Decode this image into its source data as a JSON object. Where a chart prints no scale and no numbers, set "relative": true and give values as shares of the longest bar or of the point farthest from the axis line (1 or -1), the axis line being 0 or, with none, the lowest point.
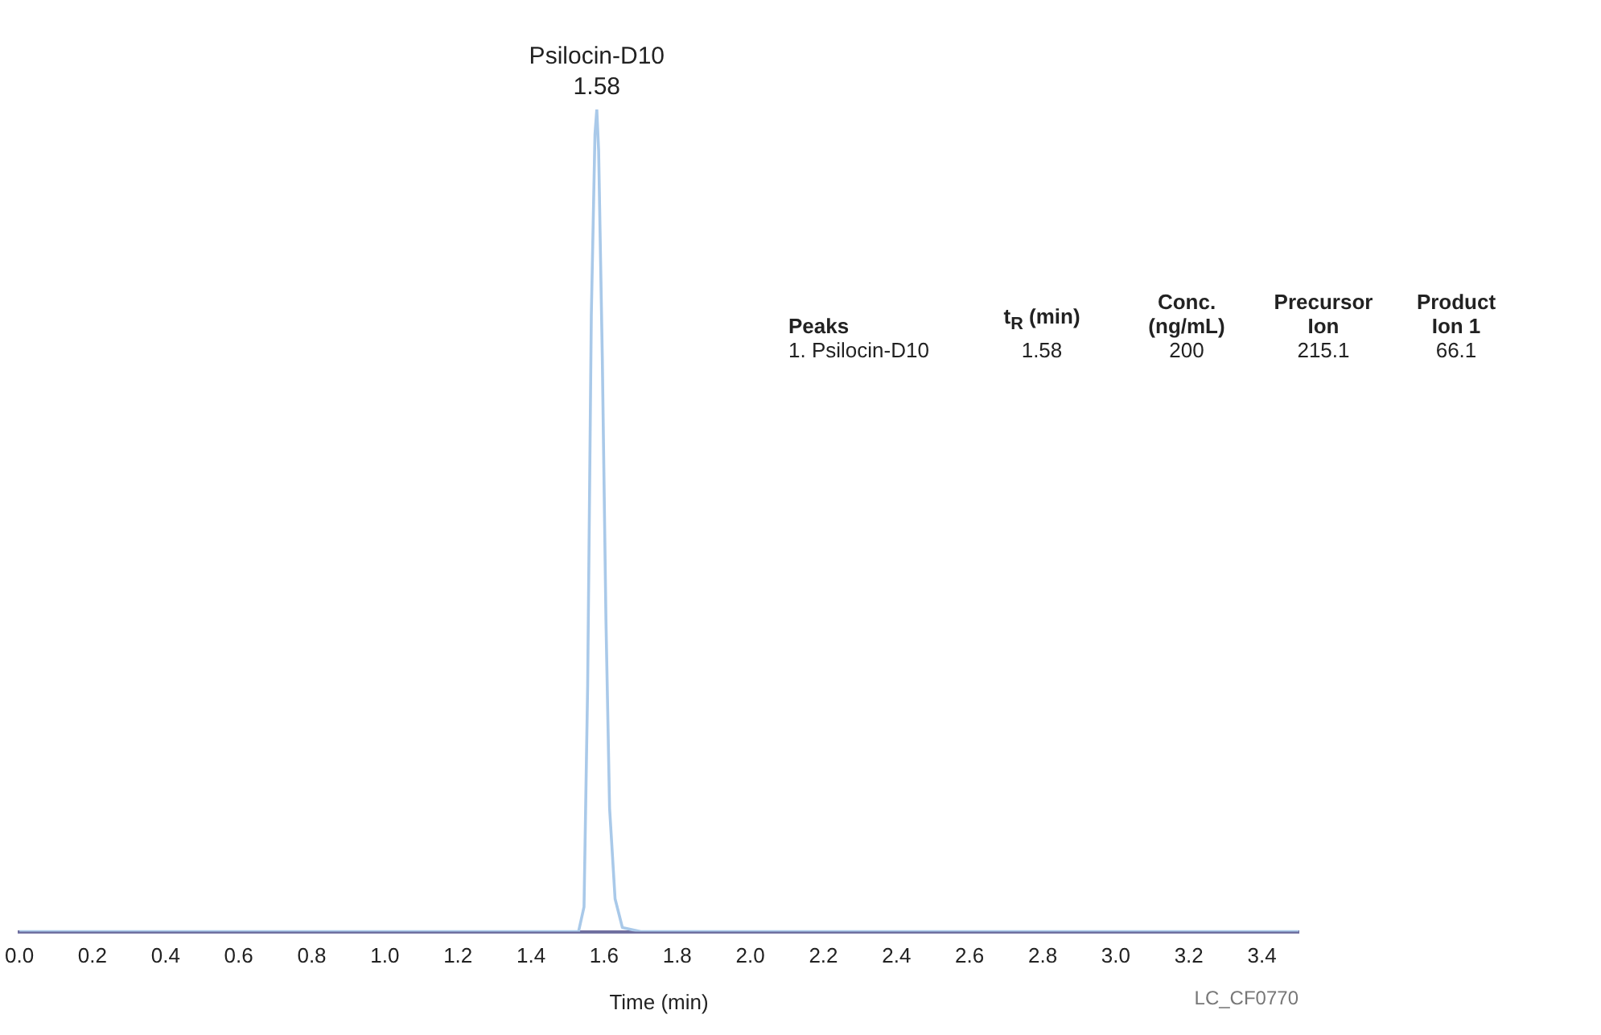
{
  "chart_data": {
    "type": "line",
    "relative": true,
    "xlabel": "Time (min)",
    "xlim": [
      0,
      3.5
    ],
    "xticks": [
      {
        "value": 0,
        "label": "0.0"
      },
      {
        "value": 0.2,
        "label": "0.2"
      },
      {
        "value": 0.4,
        "label": "0.4"
      },
      {
        "value": 0.6,
        "label": "0.6"
      },
      {
        "value": 0.8,
        "label": "0.8"
      },
      {
        "value": 1,
        "label": "1.0"
      },
      {
        "value": 1.2,
        "label": "1.2"
      },
      {
        "value": 1.4,
        "label": "1.4"
      },
      {
        "value": 1.6,
        "label": "1.6"
      },
      {
        "value": 1.8,
        "label": "1.8"
      },
      {
        "value": 2,
        "label": "2.0"
      },
      {
        "value": 2.2,
        "label": "2.2"
      },
      {
        "value": 2.4,
        "label": "2.4"
      },
      {
        "value": 2.6,
        "label": "2.6"
      },
      {
        "value": 2.8,
        "label": "2.8"
      },
      {
        "value": 3,
        "label": "3.0"
      },
      {
        "value": 3.2,
        "label": "3.2"
      },
      {
        "value": 3.4,
        "label": "3.4"
      }
    ],
    "x": [
      0,
      1.53,
      1.545,
      1.555,
      1.565,
      1.575,
      1.58,
      1.585,
      1.595,
      1.605,
      1.615,
      1.63,
      1.65,
      1.7,
      3.5
    ],
    "series": [
      {
        "color": "#a9c9e9",
        "values": [
          0,
          0,
          0.03,
          0.3,
          0.75,
          0.97,
          1,
          0.95,
          0.7,
          0.38,
          0.15,
          0.04,
          0.005,
          0,
          0
        ]
      }
    ],
    "marker": "none",
    "legend": false,
    "annotations": [
      {
        "text": "Psilocin-D10\n1.58",
        "x": 1.58,
        "y": 1
      },
      "Peaks",
      "t$_{R}$ (min)",
      "Conc.\n(ng/mL)",
      "Precursor\nIon",
      "Product\nIon 1",
      "1. Psilocin-D10",
      "1.58",
      "200",
      "215.1",
      "66.1",
      "LC_CF0770"
    ]
  }
}
